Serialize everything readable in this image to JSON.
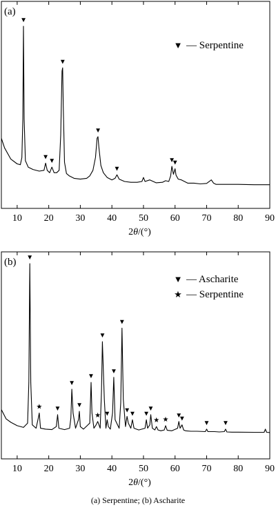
{
  "caption": "(a) Serpentine; (b) Ascharite",
  "chart_data": [
    {
      "type": "line",
      "panel_label": "(a)",
      "xlabel_prefix": "2",
      "xlabel_theta": "θ",
      "xlabel_suffix": "/(°)",
      "xlim": [
        5,
        90
      ],
      "x_ticks": [
        10,
        20,
        30,
        40,
        50,
        60,
        70,
        80,
        90
      ],
      "y_ticks_shown": false,
      "grid": false,
      "legend": {
        "position": "top-right",
        "entries": [
          {
            "marker": "▼",
            "label": "— Serpentine"
          }
        ]
      },
      "series": [
        {
          "x": [
            5.0,
            6.0,
            8.0,
            10.0,
            11.0,
            11.5,
            11.8,
            12.0,
            12.2,
            12.6,
            13.5,
            15.0,
            17.0,
            18.5,
            19.0,
            19.5,
            20.3,
            21.0,
            21.7,
            22.5,
            23.3,
            23.8,
            24.2,
            24.4,
            24.6,
            25.0,
            25.6,
            26.5,
            28.0,
            30.0,
            32.0,
            33.0,
            34.0,
            34.8,
            35.3,
            35.6,
            35.9,
            36.5,
            37.3,
            38.5,
            40.0,
            41.0,
            41.6,
            42.3,
            44.0,
            46.0,
            48.0,
            49.5,
            50.0,
            50.5,
            52.0,
            54.0,
            56.0,
            57.0,
            58.0,
            58.6,
            59.0,
            59.5,
            60.0,
            60.3,
            61.0,
            62.0,
            64.0,
            66.0,
            68.0,
            70.0,
            71.5,
            72.2,
            73.0,
            76.0,
            80.0,
            85.0,
            90.0
          ],
          "y": [
            0.3,
            0.24,
            0.17,
            0.14,
            0.135,
            0.18,
            0.42,
            1.0,
            0.42,
            0.16,
            0.12,
            0.105,
            0.095,
            0.1,
            0.145,
            0.1,
            0.085,
            0.12,
            0.085,
            0.085,
            0.1,
            0.32,
            0.72,
            0.74,
            0.5,
            0.15,
            0.08,
            0.065,
            0.05,
            0.045,
            0.05,
            0.065,
            0.1,
            0.18,
            0.3,
            0.31,
            0.24,
            0.13,
            0.085,
            0.055,
            0.04,
            0.05,
            0.072,
            0.045,
            0.03,
            0.025,
            0.025,
            0.03,
            0.055,
            0.03,
            0.04,
            0.022,
            0.025,
            0.035,
            0.03,
            0.065,
            0.125,
            0.075,
            0.11,
            0.07,
            0.045,
            0.04,
            0.02,
            0.02,
            0.015,
            0.018,
            0.04,
            0.02,
            0.012,
            0.012,
            0.012,
            0.01,
            0.01
          ]
        }
      ],
      "markers": [
        {
          "x": 12.0,
          "y": 1.0,
          "symbol": "▼"
        },
        {
          "x": 19.0,
          "y": 0.145,
          "symbol": "▼"
        },
        {
          "x": 21.0,
          "y": 0.12,
          "symbol": "▼"
        },
        {
          "x": 24.4,
          "y": 0.74,
          "symbol": "▼"
        },
        {
          "x": 35.6,
          "y": 0.31,
          "symbol": "▼"
        },
        {
          "x": 41.6,
          "y": 0.072,
          "symbol": "▼"
        },
        {
          "x": 59.0,
          "y": 0.125,
          "symbol": "▼"
        },
        {
          "x": 60.0,
          "y": 0.11,
          "symbol": "▼"
        }
      ]
    },
    {
      "type": "line",
      "panel_label": "(b)",
      "xlabel_prefix": "2",
      "xlabel_theta": "θ",
      "xlabel_suffix": "/(°)",
      "xlim": [
        5,
        90
      ],
      "x_ticks": [
        10,
        20,
        30,
        40,
        50,
        60,
        70,
        80,
        90
      ],
      "y_ticks_shown": false,
      "grid": false,
      "legend": {
        "position": "top-right",
        "entries": [
          {
            "marker": "▼",
            "label": "— Ascharite"
          },
          {
            "marker": "★",
            "label": "— Serpentine"
          }
        ]
      },
      "series": [
        {
          "x": [
            5.0,
            6.5,
            8.0,
            10.0,
            12.0,
            13.3,
            13.7,
            14.0,
            14.3,
            14.8,
            16.0,
            16.7,
            17.0,
            17.4,
            19.0,
            21.0,
            22.4,
            22.8,
            23.2,
            25.0,
            26.6,
            27.0,
            27.3,
            27.7,
            28.5,
            29.4,
            29.7,
            30.0,
            31.0,
            33.0,
            33.4,
            33.7,
            34.3,
            35.0,
            35.5,
            36.3,
            36.7,
            37.0,
            37.6,
            38.1,
            38.5,
            38.9,
            39.5,
            40.2,
            40.6,
            41.0,
            42.3,
            42.8,
            43.2,
            43.6,
            44.3,
            44.8,
            45.2,
            46.0,
            46.5,
            47.0,
            48.5,
            50.5,
            50.9,
            51.3,
            52.0,
            52.3,
            52.8,
            53.6,
            54.1,
            54.6,
            55.5,
            56.6,
            57.0,
            57.5,
            59.0,
            60.8,
            61.2,
            61.6,
            62.2,
            62.7,
            63.3,
            65.0,
            67.0,
            69.6,
            70.0,
            70.4,
            72.5,
            74.0,
            75.6,
            76.0,
            76.4,
            78.0,
            80.0,
            85.0,
            88.2,
            88.6,
            89.0,
            90.0
          ],
          "y": [
            0.14,
            0.085,
            0.065,
            0.045,
            0.035,
            0.06,
            0.3,
            1.0,
            0.3,
            0.05,
            0.03,
            0.09,
            0.12,
            0.03,
            0.025,
            0.022,
            0.04,
            0.11,
            0.03,
            0.022,
            0.03,
            0.09,
            0.26,
            0.12,
            0.03,
            0.08,
            0.13,
            0.04,
            0.025,
            0.06,
            0.3,
            0.12,
            0.03,
            0.05,
            0.07,
            0.03,
            0.25,
            0.54,
            0.2,
            0.03,
            0.08,
            0.04,
            0.025,
            0.12,
            0.33,
            0.08,
            0.03,
            0.18,
            0.62,
            0.2,
            0.04,
            0.1,
            0.06,
            0.03,
            0.08,
            0.03,
            0.02,
            0.03,
            0.08,
            0.03,
            0.05,
            0.11,
            0.03,
            0.02,
            0.04,
            0.02,
            0.015,
            0.02,
            0.045,
            0.018,
            0.015,
            0.03,
            0.07,
            0.03,
            0.05,
            0.02,
            0.015,
            0.012,
            0.012,
            0.01,
            0.025,
            0.01,
            0.01,
            0.008,
            0.01,
            0.025,
            0.008,
            0.007,
            0.007,
            0.006,
            0.006,
            0.025,
            0.006,
            0.005
          ]
        }
      ],
      "markers": [
        {
          "x": 14.0,
          "y": 1.0,
          "symbol": "▼"
        },
        {
          "x": 17.0,
          "y": 0.12,
          "symbol": "★"
        },
        {
          "x": 22.8,
          "y": 0.11,
          "symbol": "▼"
        },
        {
          "x": 27.3,
          "y": 0.26,
          "symbol": "▼"
        },
        {
          "x": 29.7,
          "y": 0.13,
          "symbol": "▼"
        },
        {
          "x": 33.4,
          "y": 0.3,
          "symbol": "▼"
        },
        {
          "x": 35.5,
          "y": 0.07,
          "symbol": "★"
        },
        {
          "x": 37.0,
          "y": 0.54,
          "symbol": "▼"
        },
        {
          "x": 38.5,
          "y": 0.08,
          "symbol": "▼"
        },
        {
          "x": 40.6,
          "y": 0.33,
          "symbol": "▼"
        },
        {
          "x": 43.2,
          "y": 0.62,
          "symbol": "▼"
        },
        {
          "x": 44.8,
          "y": 0.1,
          "symbol": "▼"
        },
        {
          "x": 46.5,
          "y": 0.08,
          "symbol": "▼"
        },
        {
          "x": 50.9,
          "y": 0.08,
          "symbol": "▼"
        },
        {
          "x": 52.3,
          "y": 0.11,
          "symbol": "▼"
        },
        {
          "x": 54.1,
          "y": 0.04,
          "symbol": "★"
        },
        {
          "x": 57.0,
          "y": 0.045,
          "symbol": "★"
        },
        {
          "x": 61.2,
          "y": 0.07,
          "symbol": "▼"
        },
        {
          "x": 62.2,
          "y": 0.05,
          "symbol": "▼"
        },
        {
          "x": 70.0,
          "y": 0.025,
          "symbol": "▼"
        },
        {
          "x": 76.0,
          "y": 0.025,
          "symbol": "▼"
        }
      ]
    }
  ]
}
